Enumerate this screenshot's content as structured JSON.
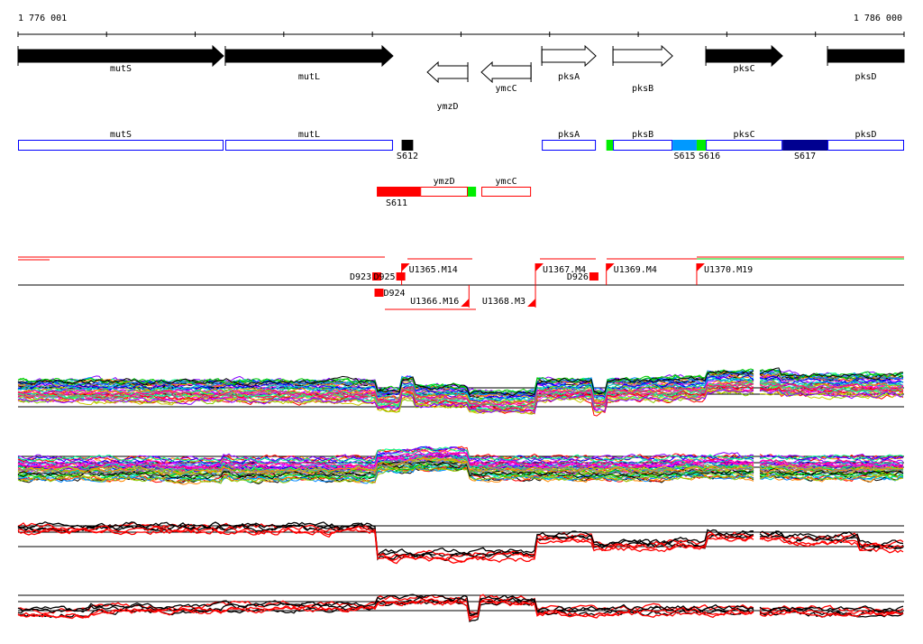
{
  "ruler": {
    "start_label": "1 776 001",
    "end_label": "1 786 000",
    "start": 1776001,
    "end": 1786000,
    "tick_step": 1000
  },
  "genes": [
    {
      "name": "mutS",
      "start": 1776001,
      "end": 1778320,
      "strand": "+",
      "fill": "#000000",
      "row": 0
    },
    {
      "name": "mutL",
      "start": 1778340,
      "end": 1780232,
      "strand": "+",
      "fill": "#000000",
      "row": 1
    },
    {
      "name": "ymzD",
      "start": 1780620,
      "end": 1781077,
      "strand": "-",
      "fill": "#ffffff",
      "row": 3
    },
    {
      "name": "ymcC",
      "start": 1781230,
      "end": 1781790,
      "strand": "-",
      "fill": "#ffffff",
      "row": 2
    },
    {
      "name": "pksA",
      "start": 1781912,
      "end": 1782522,
      "strand": "+",
      "fill": "#ffffff",
      "row": 1
    },
    {
      "name": "pksB",
      "start": 1782715,
      "end": 1783387,
      "strand": "+",
      "fill": "#ffffff",
      "row": 2
    },
    {
      "name": "pksC",
      "start": 1783763,
      "end": 1784628,
      "strand": "+",
      "fill": "#000000",
      "row": 0
    },
    {
      "name": "pksD",
      "start": 1785136,
      "end": 1786000,
      "strand": "+",
      "fill": "#000000",
      "row": 1
    }
  ],
  "transcripts_plus": [
    {
      "label": "mutS",
      "start": 1776001,
      "end": 1778320
    },
    {
      "label": "mutL",
      "start": 1778340,
      "end": 1780232
    },
    {
      "label": "pksA",
      "start": 1781912,
      "end": 1782522
    },
    {
      "label": "pksB",
      "start": 1782715,
      "end": 1783387
    },
    {
      "label": "pksC",
      "start": 1783763,
      "end": 1784628
    },
    {
      "label": "pksD",
      "start": 1785136,
      "end": 1786000
    }
  ],
  "signals_plus": [
    {
      "label": "S612",
      "start": 1780330,
      "end": 1780460,
      "color": "#000000"
    },
    {
      "label": "",
      "start": 1782640,
      "end": 1782715,
      "color": "#00ee00"
    },
    {
      "label": "S615",
      "start": 1783387,
      "end": 1783660,
      "color": "#0099ff"
    },
    {
      "label": "S616",
      "start": 1783660,
      "end": 1783763,
      "color": "#00ee00"
    },
    {
      "label": "S617",
      "start": 1784628,
      "end": 1785136,
      "color": "#000090"
    }
  ],
  "transcripts_minus": [
    {
      "label": "ymzD",
      "start": 1780540,
      "end": 1781077
    },
    {
      "label": "ymcC",
      "start": 1781230,
      "end": 1781790
    }
  ],
  "signals_minus": [
    {
      "label": "S611",
      "start": 1780050,
      "end": 1780540,
      "color": "#ff0000"
    },
    {
      "label": "",
      "start": 1781077,
      "end": 1781170,
      "color": "#00ee00"
    }
  ],
  "segments": [
    {
      "label": "D923",
      "pos": 1780050,
      "side": "up",
      "type": "D"
    },
    {
      "label": "D925",
      "pos": 1780320,
      "side": "up",
      "type": "D"
    },
    {
      "label": "U1365.M14",
      "pos": 1780330,
      "side": "up",
      "type": "U"
    },
    {
      "label": "D924",
      "pos": 1780075,
      "side": "down",
      "type": "D"
    },
    {
      "label": "U1366.M16",
      "pos": 1781090,
      "side": "down",
      "type": "Ue"
    },
    {
      "label": "U1368.M3",
      "pos": 1781840,
      "side": "down",
      "type": "Ue"
    },
    {
      "label": "U1367.M4",
      "pos": 1781840,
      "side": "up",
      "type": "U"
    },
    {
      "label": "D926",
      "pos": 1782500,
      "side": "up",
      "type": "D"
    },
    {
      "label": "U1369.M4",
      "pos": 1782640,
      "side": "up",
      "type": "U"
    },
    {
      "label": "U1370.M19",
      "pos": 1783660,
      "side": "up",
      "type": "U"
    }
  ],
  "profiles": [
    {
      "name": "expression-panel-1",
      "lines": 40,
      "palette": "multi",
      "levels": [
        [
          1776001,
          0.2
        ],
        [
          1780050,
          -0.8
        ],
        [
          1780330,
          0.6
        ],
        [
          1780460,
          -0.4
        ],
        [
          1781080,
          -1.1
        ],
        [
          1781840,
          0.4
        ],
        [
          1782500,
          -1.0
        ],
        [
          1782640,
          0.4
        ],
        [
          1783387,
          0.6
        ],
        [
          1783763,
          1.3
        ],
        [
          1784600,
          0.9
        ]
      ]
    },
    {
      "name": "expression-panel-2",
      "lines": 40,
      "palette": "multi",
      "levels": [
        [
          1776001,
          -0.2
        ],
        [
          1777600,
          -0.4
        ],
        [
          1778300,
          0.1
        ],
        [
          1778400,
          -0.3
        ],
        [
          1780050,
          0.7
        ],
        [
          1780460,
          1.0
        ],
        [
          1781080,
          -0.1
        ],
        [
          1781840,
          -0.2
        ],
        [
          1783400,
          0.0
        ],
        [
          1784600,
          -0.1
        ]
      ]
    },
    {
      "name": "expression-panel-3",
      "lines": 6,
      "palette": "redblack",
      "levels": [
        [
          1776001,
          1.4
        ],
        [
          1780050,
          -1.6
        ],
        [
          1781840,
          0.3
        ],
        [
          1782500,
          -0.6
        ],
        [
          1782640,
          -0.4
        ],
        [
          1783763,
          0.6
        ],
        [
          1784628,
          0.2
        ],
        [
          1785500,
          -0.6
        ]
      ]
    },
    {
      "name": "expression-panel-4",
      "lines": 6,
      "palette": "redblack",
      "levels": [
        [
          1776001,
          -0.4
        ],
        [
          1776800,
          0.0
        ],
        [
          1778300,
          0.3
        ],
        [
          1780050,
          1.0
        ],
        [
          1781080,
          -0.9
        ],
        [
          1781200,
          1.0
        ],
        [
          1781840,
          -0.3
        ],
        [
          1782700,
          -0.2
        ],
        [
          1785000,
          -0.4
        ]
      ]
    }
  ],
  "colors": {
    "transcript_plus": "#0000ff",
    "transcript_minus": "#ff0000",
    "segment": "#ff0000"
  }
}
